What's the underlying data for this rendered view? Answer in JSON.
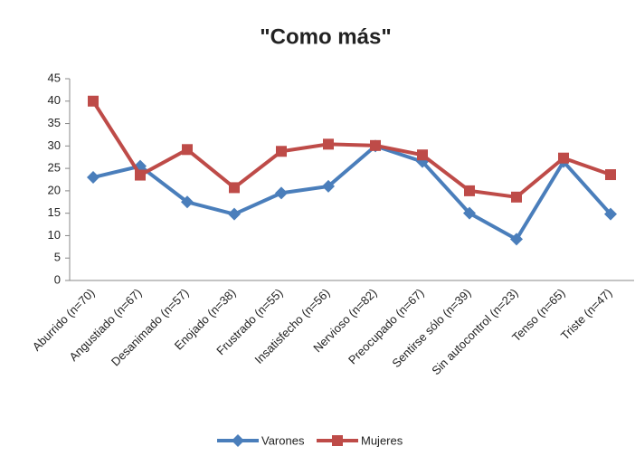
{
  "chart_data": {
    "type": "line",
    "title": "\"Como más\"",
    "categories": [
      "Aburrido (n=70)",
      "Angustiado (n=67)",
      "Desanimado (n=57)",
      "Enojado (n=38)",
      "Frustrado (n=55)",
      "Insatisfecho (n=56)",
      "Nervioso (n=82)",
      "Preocupado (n=67)",
      "Sentirse sólo (n=39)",
      "Sin autocontrol (n=23)",
      "Tenso (n=65)",
      "Triste (n=47)"
    ],
    "series": [
      {
        "name": "Varones",
        "color": "#4a7ebb",
        "marker": "diamond",
        "values": [
          23,
          25.5,
          17.5,
          14.8,
          19.5,
          21,
          30,
          26.5,
          15,
          9.2,
          26.5,
          14.8
        ]
      },
      {
        "name": "Mujeres",
        "color": "#be4b48",
        "marker": "square",
        "values": [
          40,
          23.5,
          29.2,
          20.7,
          28.8,
          30.4,
          30.1,
          28,
          20,
          18.6,
          27.3,
          23.6
        ]
      }
    ],
    "ylim": [
      0,
      45
    ],
    "yticks": [
      0,
      5,
      10,
      15,
      20,
      25,
      30,
      35,
      40,
      45
    ],
    "grid": false,
    "legend": "bottom"
  }
}
